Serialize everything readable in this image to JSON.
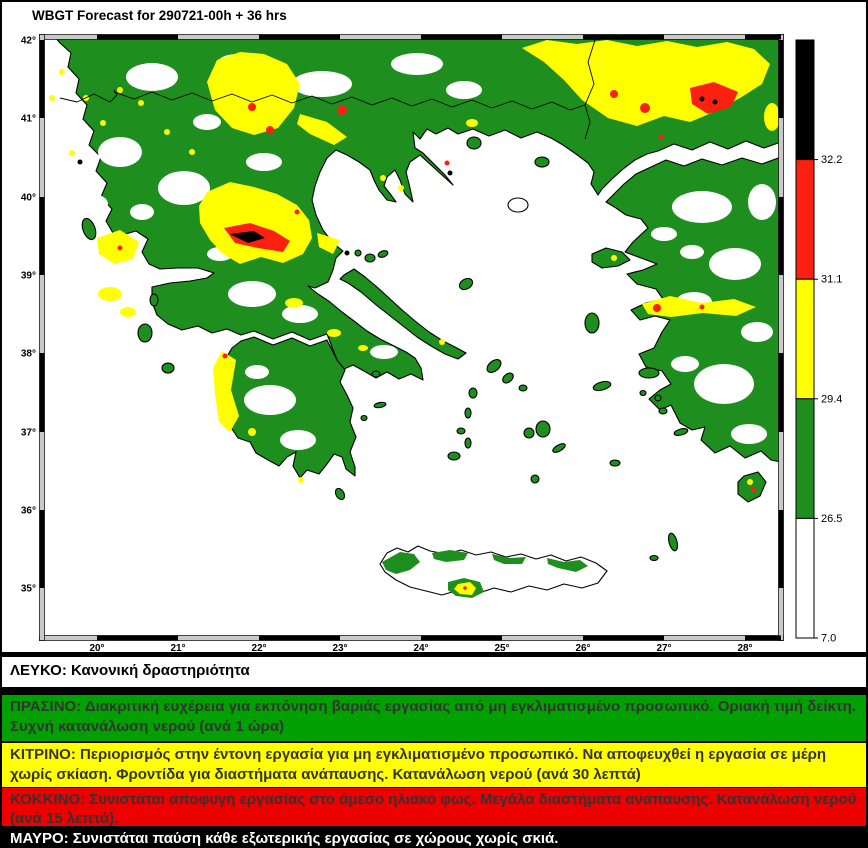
{
  "title": "WBGT Forecast for 290721-00h + 36 hrs",
  "map": {
    "lat_labels": [
      "42°",
      "41°",
      "40°",
      "39°",
      "38°",
      "37°",
      "36°",
      "35°"
    ],
    "lon_labels": [
      "20°",
      "21°",
      "22°",
      "23°",
      "24°",
      "25°",
      "26°",
      "27°",
      "28°"
    ]
  },
  "chart_data": {
    "type": "heatmap",
    "title": "WBGT Forecast for 290721-00h + 36 hrs",
    "region": "Greece and the Aegean Sea",
    "x_axis": {
      "label": "longitude",
      "tick_labels": [
        "20°",
        "21°",
        "22°",
        "23°",
        "24°",
        "25°",
        "26°",
        "27°",
        "28°"
      ],
      "range": [
        19.3,
        28.5
      ]
    },
    "y_axis": {
      "label": "latitude",
      "tick_labels": [
        "42°",
        "41°",
        "40°",
        "39°",
        "38°",
        "37°",
        "36°",
        "35°"
      ],
      "range": [
        34.3,
        42.0
      ]
    },
    "grid": false,
    "legend_position": "right-colorbar",
    "colorbar": {
      "tick_values": [
        32.2,
        31.1,
        29.4,
        26.5,
        7.0
      ],
      "bands_top_to_bottom": [
        {
          "color": "#000000",
          "label": "32.2",
          "range": "above 32.2"
        },
        {
          "color": "#fb2012",
          "label": "31.1",
          "range": "31.1 to 32.2"
        },
        {
          "color": "#ffff00",
          "label": "29.4",
          "range": "29.4 to 31.1"
        },
        {
          "color": "#1e8e1e",
          "label": "26.5",
          "range": "26.5 to 29.4"
        },
        {
          "color": "#ffffff",
          "label": "7.0",
          "range": "7.0 to 26.5"
        }
      ]
    }
  },
  "legend": {
    "strips": [
      {
        "name": "white",
        "text": "ΛΕΥΚΟ: Κανονική δραστηριότητα"
      },
      {
        "name": "green",
        "text": "ΠΡΑΣΙΝΟ: Διακριτική ευχέρεια για εκπόνηση βαριάς εργασίας από μη εγκλιματισμένο προσωπικό. Οριακή τιμή δείκτη. Συχνή κατανάλωση νερού (ανά 1 ώρα)"
      },
      {
        "name": "yellow",
        "text": "ΚΙΤΡΙΝΟ: Περιορισμός στην έντονη εργασία για μη εγκλιματισμένο προσωπικό. Να αποφευχθεί η εργασία σε μέρη χωρίς σκίαση. Φροντίδα για διαστήματα ανάπαυσης. Κατανάλωση νερού (ανά 30 λεπτά)"
      },
      {
        "name": "red",
        "text": "ΚΟΚΚΙΝΟ: Συνιστάται αποφυγή εργασίας στο άμεσο ηλιακό φως. Μεγάλα διαστήματα ανάπαυσης. Κατανάλωση νερού (ανά 15 λεπτά)."
      },
      {
        "name": "black",
        "text": "ΜΑΥΡΟ: Συνιστάται παύση κάθε εξωτερικής εργασίας σε χώρους χωρίς σκιά."
      }
    ]
  },
  "palette": {
    "map_green": "#1e8e1e",
    "map_yellow": "#ffff00",
    "map_red": "#fb2012",
    "map_black": "#000000",
    "sea_white": "#ffffff",
    "frame_gray": "#c9c9c9",
    "strip_green": "#00a000",
    "strip_yellow": "#ffff00",
    "strip_red": "#ee0000",
    "strip_black": "#000000",
    "strip_text_dark": "#333333",
    "strip_text_light": "#ffffff"
  }
}
